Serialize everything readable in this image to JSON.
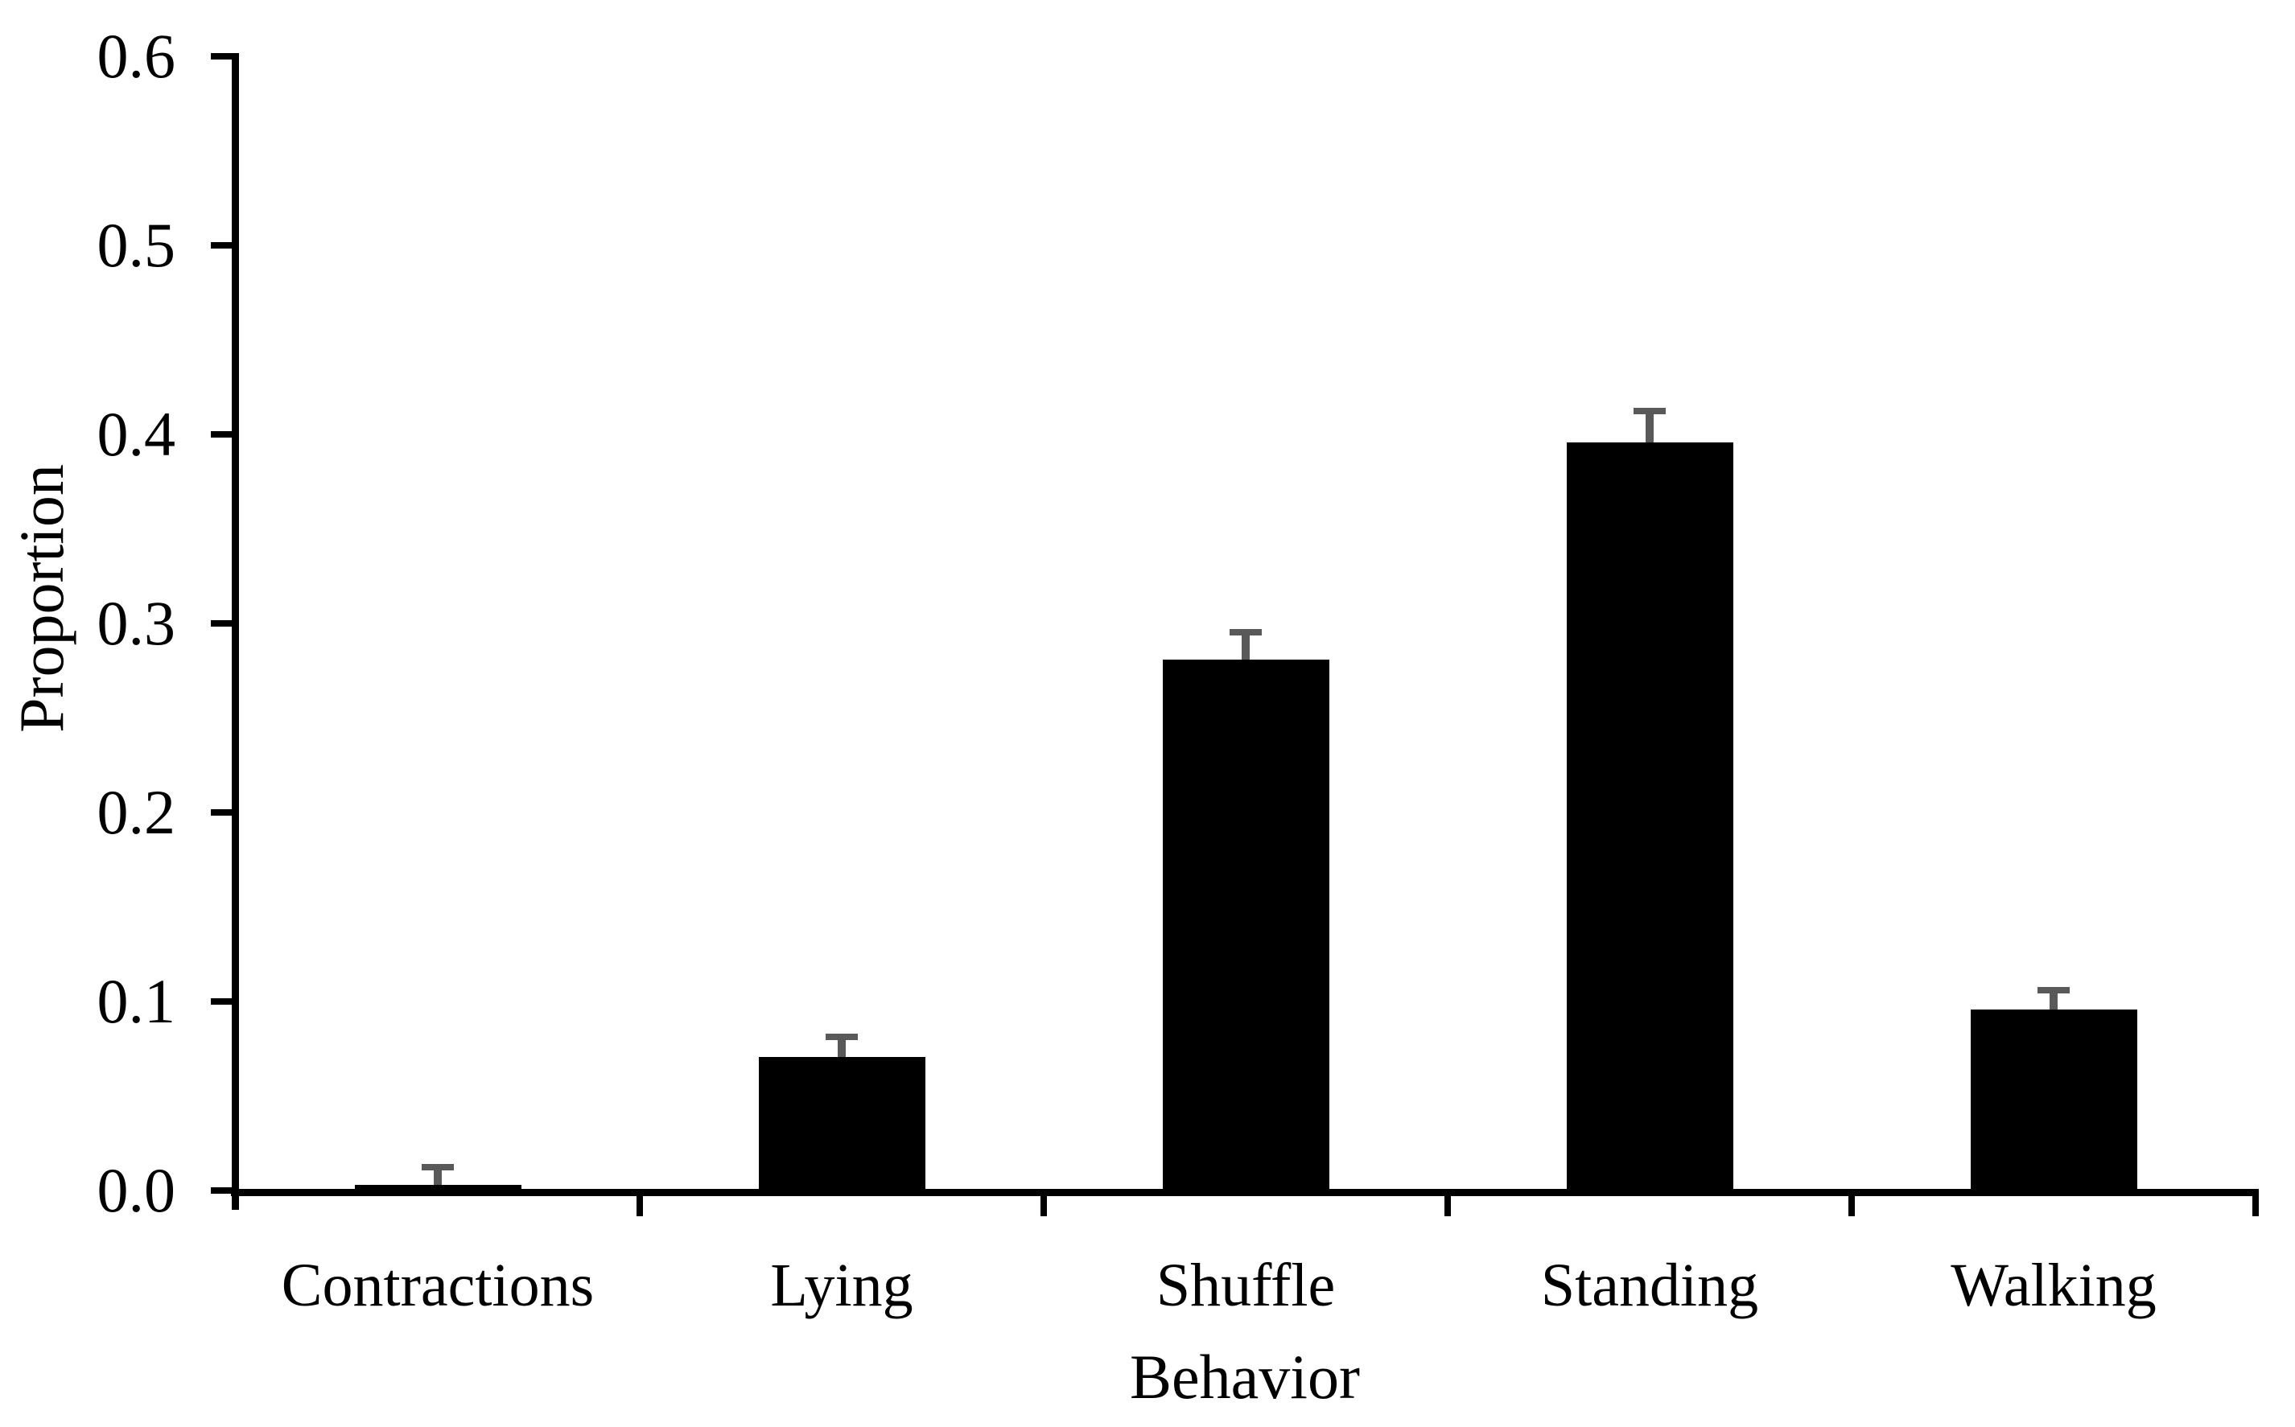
{
  "chart_data": {
    "type": "bar",
    "title": "",
    "categories": [
      "Contractions",
      "Lying",
      "Shuffle",
      "Standing",
      "Walking"
    ],
    "values": [
      0.002,
      0.07,
      0.28,
      0.395,
      0.095
    ],
    "errors_upper": [
      0.011,
      0.012,
      0.016,
      0.018,
      0.012
    ],
    "xlabel": "Behavior",
    "ylabel": "Proportion",
    "ylim": [
      0.0,
      0.6
    ],
    "ytick_step": 0.1,
    "ytick_labels": [
      "0.0",
      "0.1",
      "0.2",
      "0.3",
      "0.4",
      "0.5",
      "0.6"
    ],
    "grid": false,
    "legend": "none",
    "bar_color": "#000000",
    "error_bar_color": "#595959",
    "axis_color": "#000000",
    "background_color": "#ffffff"
  }
}
